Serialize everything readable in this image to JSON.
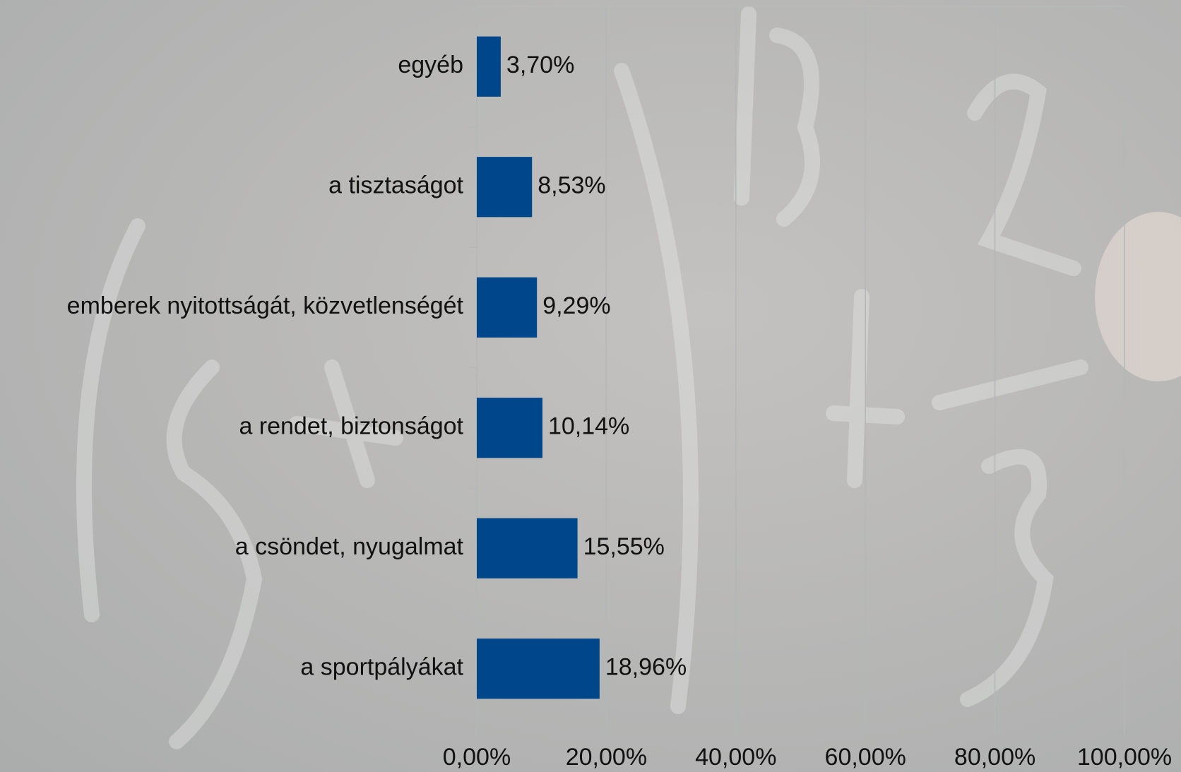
{
  "chart_data": {
    "type": "bar",
    "orientation": "horizontal",
    "categories": [
      "egyéb",
      "a tisztaságot",
      "emberek nyitottságát, közvetlenségét",
      "a rendet, biztonságot",
      "a csöndet, nyugalmat",
      "a sportpályákat"
    ],
    "values": [
      3.7,
      8.53,
      9.29,
      10.14,
      15.55,
      18.96
    ],
    "value_labels": [
      "3,70%",
      "8,53%",
      "9,29%",
      "10,14%",
      "15,55%",
      "18,96%"
    ],
    "color": "#00468b",
    "xlim": [
      0,
      100
    ],
    "xticks": [
      {
        "value": 0,
        "label": "0,00%"
      },
      {
        "value": 20,
        "label": "20,00%"
      },
      {
        "value": 40,
        "label": "40,00%"
      },
      {
        "value": 60,
        "label": "60,00%"
      },
      {
        "value": 80,
        "label": "80,00%"
      },
      {
        "value": 100,
        "label": "100,00%"
      }
    ],
    "grid": true
  }
}
